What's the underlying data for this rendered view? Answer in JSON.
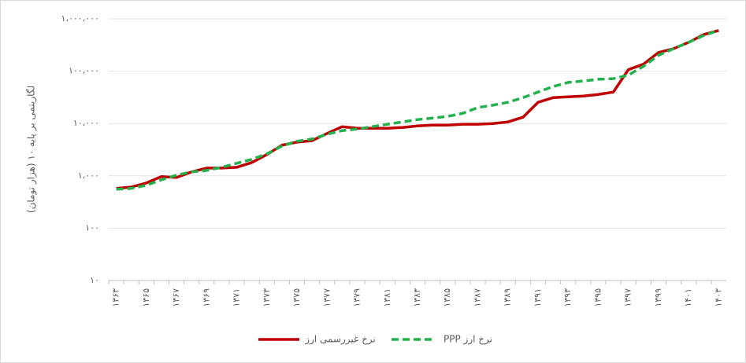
{
  "chart_data": {
    "type": "line",
    "y_label": "لگاریتمی بر پایه ۱۰ (هزار تومان)",
    "categories": [
      "۱۳۶۳",
      null,
      "۱۳۶۵",
      null,
      "۱۳۶۷",
      null,
      "۱۳۶۹",
      null,
      "۱۳۷۱",
      null,
      "۱۳۷۳",
      null,
      "۱۳۷۵",
      null,
      "۱۳۷۷",
      null,
      "۱۳۷۹",
      null,
      "۱۳۸۱",
      null,
      "۱۳۸۳",
      null,
      "۱۳۸۵",
      null,
      "۱۳۸۷",
      null,
      "۱۳۸۹",
      null,
      "۱۳۹۱",
      null,
      "۱۳۹۳",
      null,
      "۱۳۹۵",
      null,
      "۱۳۹۷",
      null,
      "۱۳۹۹",
      null,
      "۱۴۰۱",
      null,
      "۱۴۰۳"
    ],
    "series": [
      {
        "name": "نرخ غیررسمی ارز",
        "color": "#c00000",
        "dash": false,
        "values": [
          575,
          610,
          730,
          970,
          930,
          1190,
          1410,
          1410,
          1460,
          1800,
          2550,
          3850,
          4400,
          4700,
          6460,
          8700,
          8100,
          8100,
          8100,
          8400,
          9000,
          9300,
          9300,
          9700,
          9700,
          10000,
          10700,
          13200,
          25400,
          31200,
          32300,
          33500,
          35900,
          39800,
          107000,
          136000,
          228000,
          270000,
          356000,
          500000,
          600000
        ]
      },
      {
        "name": "نرخ ارز PPP",
        "color": "#22b14c",
        "dash": true,
        "values": [
          555,
          575,
          660,
          840,
          1030,
          1190,
          1270,
          1460,
          1740,
          2070,
          2630,
          3720,
          4570,
          5060,
          6240,
          7330,
          7850,
          8700,
          9700,
          10700,
          11900,
          12700,
          13700,
          15700,
          20200,
          22400,
          25400,
          31200,
          39800,
          51000,
          61000,
          65000,
          70000,
          72000,
          84000,
          124000,
          201000,
          270000,
          356000,
          480000,
          600000
        ]
      }
    ],
    "log": true,
    "grid": true,
    "legend": "bottom",
    "ylim": [
      10,
      1000000
    ],
    "yticks": [
      {
        "value": 10,
        "label": "۱۰"
      },
      {
        "value": 100,
        "label": "۱۰۰"
      },
      {
        "value": 1000,
        "label": "۱،۰۰۰"
      },
      {
        "value": 10000,
        "label": "۱۰،۰۰۰"
      },
      {
        "value": 100000,
        "label": "۱۰۰،۰۰۰"
      },
      {
        "value": 1000000,
        "label": "۱،۰۰۰،۰۰۰"
      }
    ]
  }
}
